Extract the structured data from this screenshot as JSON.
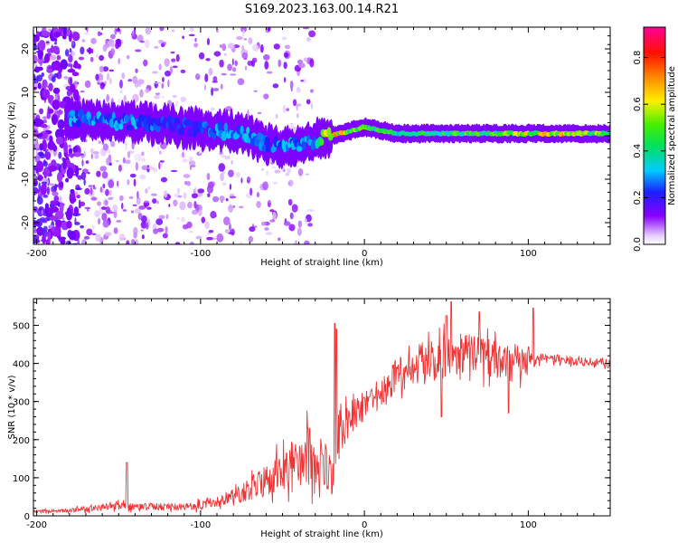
{
  "title": "S169.2023.163.00.14.R21",
  "chart_data": [
    {
      "type": "heatmap",
      "xlabel": "Height of straight line (km)",
      "ylabel": "Frequency (Hz)",
      "xlim": [
        -202,
        150
      ],
      "ylim": [
        -25,
        25
      ],
      "x_ticks": [
        -200,
        -100,
        0,
        100
      ],
      "y_ticks": [
        -20,
        -10,
        0,
        10,
        20
      ],
      "colorbar": {
        "label": "Normalized spectral amplitude",
        "range": [
          0,
          0.93
        ],
        "ticks": [
          0,
          0.2,
          0.4,
          0.6,
          0.8
        ],
        "tick_labels": [
          "0.0",
          "0.2",
          "0.4",
          "0.6",
          "0.8"
        ]
      },
      "ridge": {
        "x": [
          -180,
          -160,
          -140,
          -120,
          -100,
          -90,
          -80,
          -70,
          -60,
          -50,
          -40,
          -30,
          -20,
          -10,
          0,
          20,
          40,
          60,
          80,
          100,
          120,
          150
        ],
        "frequency": [
          4,
          3.5,
          3,
          2.5,
          1.5,
          1,
          1,
          0,
          -2,
          -3,
          -2,
          -1,
          0,
          1,
          2,
          0.5,
          0.5,
          0.5,
          0.5,
          0.5,
          0.5,
          0.5
        ],
        "amplitude": [
          0.3,
          0.3,
          0.3,
          0.25,
          0.25,
          0.3,
          0.35,
          0.3,
          0.25,
          0.3,
          0.3,
          0.3,
          0.7,
          0.6,
          0.5,
          0.45,
          0.45,
          0.5,
          0.5,
          0.6,
          0.7,
          0.5
        ]
      }
    },
    {
      "type": "line",
      "xlabel": "Height of straight line (km)",
      "ylabel": "SNR (10 * v/v)",
      "xlim": [
        -202,
        150
      ],
      "ylim": [
        0,
        570
      ],
      "x_ticks": [
        -200,
        -100,
        0,
        100
      ],
      "y_ticks": [
        0,
        100,
        200,
        300,
        400,
        500
      ],
      "color": "#ee3333",
      "series": [
        {
          "x": [
            -200,
            -190,
            -180,
            -170,
            -160,
            -150,
            -140,
            -130,
            -120,
            -110,
            -100,
            -90,
            -80,
            -70,
            -60,
            -50,
            -40,
            -35,
            -30,
            -25,
            -20,
            -18,
            -15,
            -10,
            -5,
            0,
            5,
            10,
            15,
            20,
            25,
            30,
            35,
            40,
            45,
            50,
            55,
            60,
            65,
            70,
            75,
            80,
            85,
            90,
            95,
            100,
            105,
            110,
            120,
            130,
            140,
            150
          ],
          "values": [
            12,
            12,
            14,
            18,
            24,
            28,
            22,
            24,
            22,
            24,
            30,
            36,
            52,
            70,
            92,
            120,
            150,
            160,
            150,
            140,
            110,
            180,
            225,
            250,
            270,
            290,
            300,
            315,
            345,
            370,
            385,
            400,
            405,
            410,
            415,
            420,
            420,
            425,
            430,
            425,
            420,
            410,
            405,
            400,
            405,
            410,
            415,
            412,
            410,
            405,
            403,
            400
          ],
          "noise": [
            4,
            4,
            5,
            8,
            10,
            12,
            9,
            10,
            10,
            10,
            14,
            16,
            20,
            30,
            40,
            55,
            70,
            90,
            70,
            60,
            60,
            80,
            70,
            50,
            40,
            40,
            40,
            40,
            45,
            50,
            55,
            55,
            55,
            60,
            60,
            60,
            60,
            60,
            55,
            55,
            55,
            50,
            50,
            50,
            50,
            50,
            15,
            12,
            12,
            12,
            12,
            12
          ],
          "peaks": [
            [
              -145,
              140
            ],
            [
              -18,
              505
            ],
            [
              -17,
              490
            ],
            [
              53,
              562
            ],
            [
              50,
              525
            ],
            [
              70,
              535
            ],
            [
              103,
              545
            ],
            [
              47,
              260
            ],
            [
              88,
              270
            ]
          ]
        }
      ]
    }
  ]
}
